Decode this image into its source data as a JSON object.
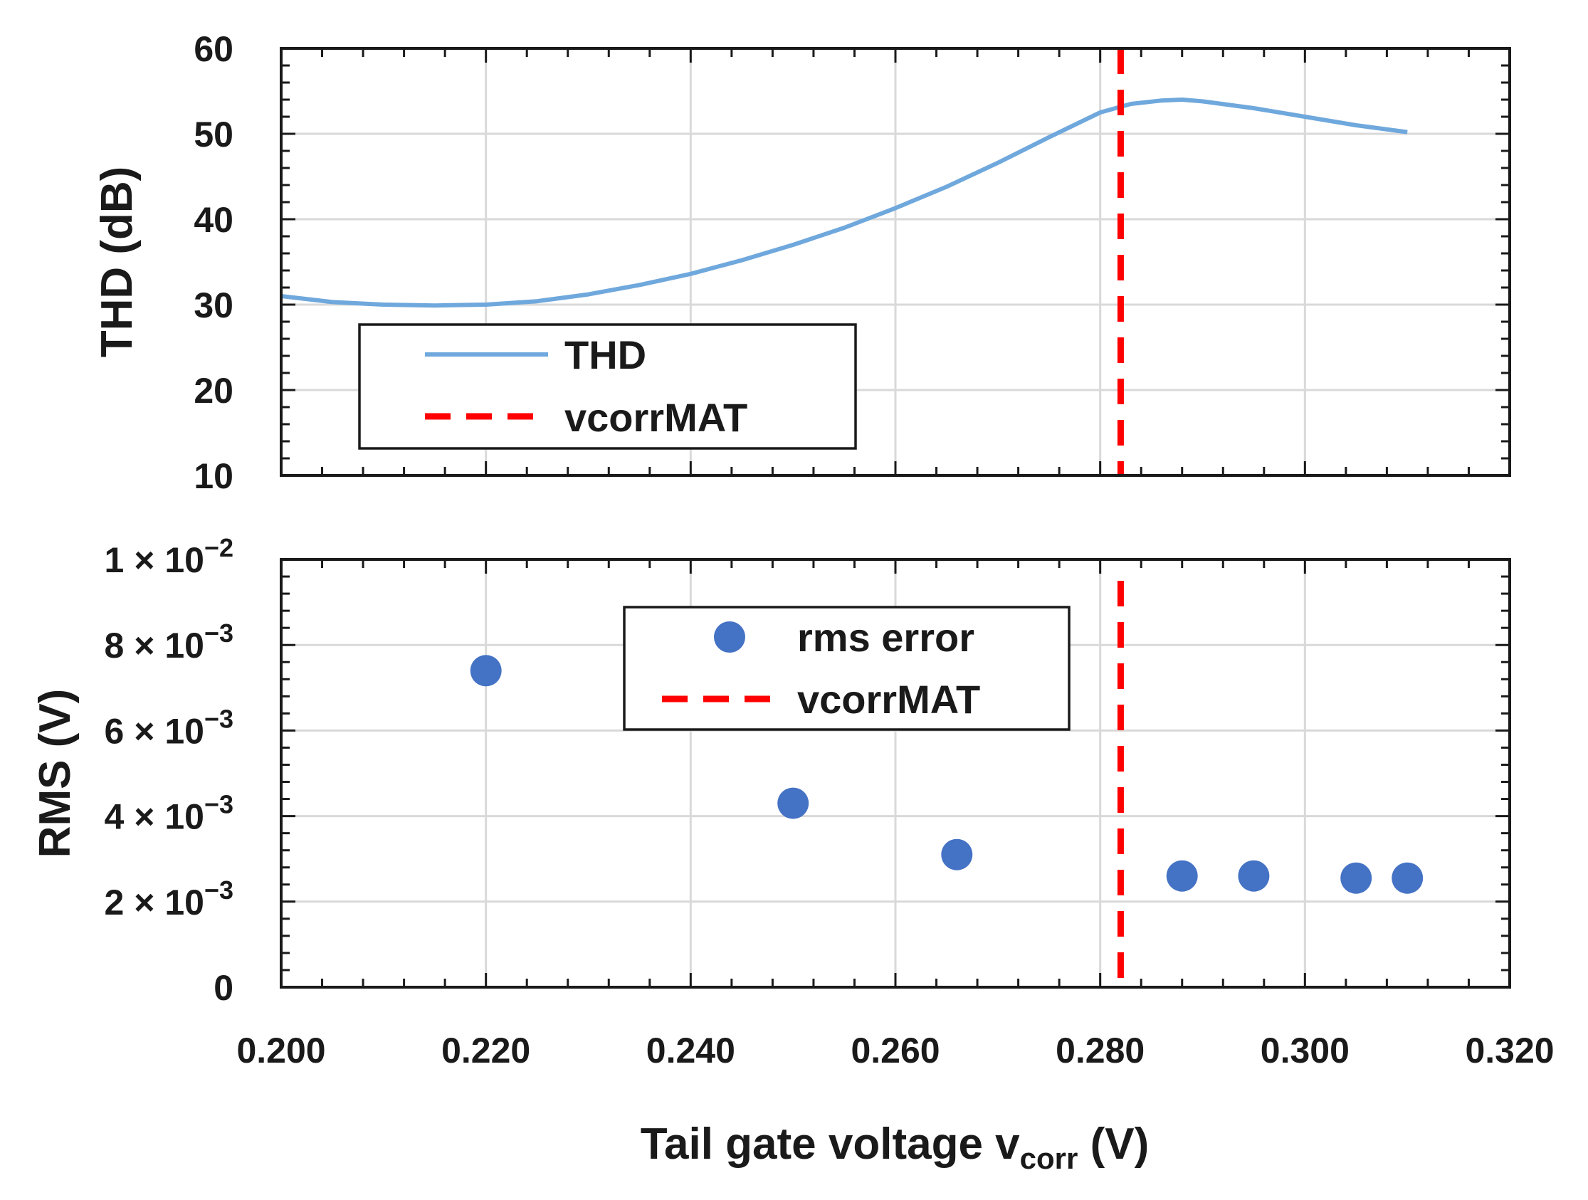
{
  "colors": {
    "thd_line": "#6fa8dc",
    "rms_points": "#4472c4",
    "vcorr_line": "#ff0000",
    "grid": "#d9d9d9",
    "axis": "#1a1a1a"
  },
  "chart_data": [
    {
      "id": "top",
      "type": "line",
      "ylabel": "THD (dB)",
      "ylim": [
        10,
        60
      ],
      "yticks": [
        10,
        20,
        30,
        40,
        50,
        60
      ],
      "ytick_labels": [
        "10",
        "20",
        "30",
        "40",
        "50",
        "60"
      ],
      "xlim": [
        0.2,
        0.32
      ],
      "legend_position": "lower-left",
      "series": [
        {
          "name": "THD",
          "style": "solid",
          "x": [
            0.2,
            0.205,
            0.21,
            0.215,
            0.22,
            0.225,
            0.23,
            0.235,
            0.24,
            0.245,
            0.25,
            0.255,
            0.26,
            0.265,
            0.27,
            0.275,
            0.28,
            0.283,
            0.286,
            0.288,
            0.29,
            0.295,
            0.3,
            0.305,
            0.31
          ],
          "y": [
            31,
            30.3,
            30.0,
            29.9,
            30.0,
            30.4,
            31.2,
            32.3,
            33.6,
            35.2,
            37.0,
            39.0,
            41.3,
            43.8,
            46.6,
            49.6,
            52.5,
            53.5,
            53.9,
            54.0,
            53.8,
            53.0,
            52.0,
            51.0,
            50.2
          ]
        }
      ],
      "reference_lines": [
        {
          "name": "vcorrMAT",
          "style": "dashed",
          "x": 0.282
        }
      ],
      "legend": [
        "THD",
        "vcorrMAT"
      ]
    },
    {
      "id": "bottom",
      "type": "scatter",
      "ylabel": "RMS (V)",
      "ylim": [
        0,
        0.01
      ],
      "yticks": [
        0,
        0.002,
        0.004,
        0.006,
        0.008,
        0.01
      ],
      "ytick_labels": [
        {
          "mantissa": "0",
          "exponent": ""
        },
        {
          "mantissa": "2 × 10",
          "exponent": "−3"
        },
        {
          "mantissa": "4 × 10",
          "exponent": "−3"
        },
        {
          "mantissa": "6 × 10",
          "exponent": "−3"
        },
        {
          "mantissa": "8 × 10",
          "exponent": "−3"
        },
        {
          "mantissa": "1 × 10",
          "exponent": "−2"
        }
      ],
      "xlim": [
        0.2,
        0.32
      ],
      "xticks": [
        0.2,
        0.22,
        0.24,
        0.26,
        0.28,
        0.3,
        0.32
      ],
      "xtick_labels": [
        "0.200",
        "0.220",
        "0.240",
        "0.260",
        "0.280",
        "0.300",
        "0.320"
      ],
      "xlabel": {
        "main": "Tail gate voltage v",
        "sub": "corr",
        "unit": " (V)"
      },
      "legend_position": "top-center",
      "series": [
        {
          "name": "rms error",
          "style": "points",
          "x": [
            0.22,
            0.25,
            0.266,
            0.288,
            0.295,
            0.305,
            0.31
          ],
          "y": [
            0.0074,
            0.0043,
            0.0031,
            0.0026,
            0.0026,
            0.00255,
            0.00255
          ]
        }
      ],
      "reference_lines": [
        {
          "name": "vcorrMAT",
          "style": "dashed",
          "x": 0.282
        }
      ],
      "legend": [
        "rms error",
        "vcorrMAT"
      ]
    }
  ]
}
